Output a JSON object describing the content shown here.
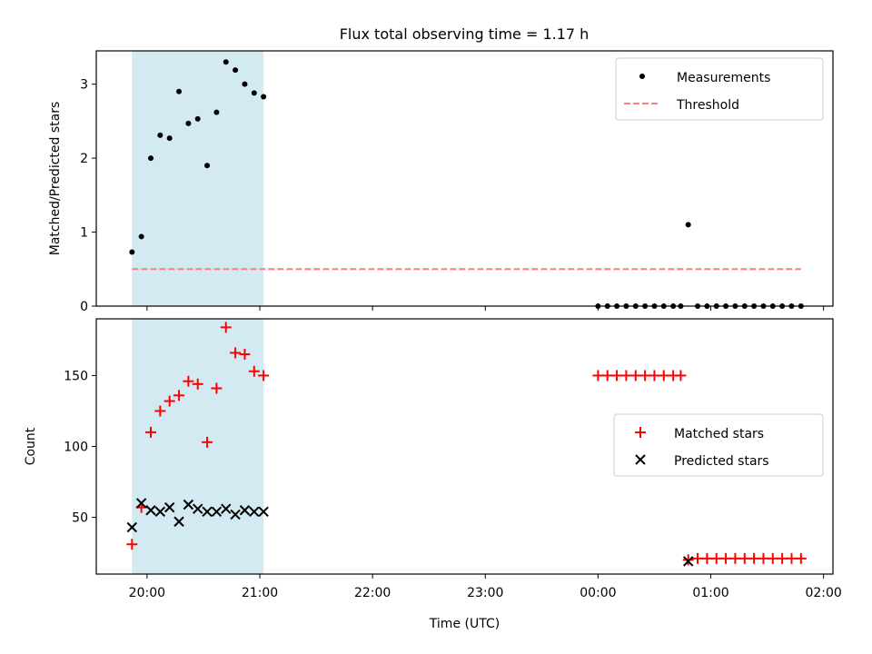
{
  "figure": {
    "title": "Flux total observing time = 1.17 h"
  },
  "colors": {
    "highlight_band": "#add8e6",
    "measurement": "#000000",
    "threshold": "#ff7f7f",
    "matched": "#ff0000",
    "predicted": "#000000"
  },
  "chart_data": [
    {
      "type": "scatter",
      "panel": "top",
      "title": "Flux total observing time = 1.17 h",
      "xlabel": "",
      "ylabel": "Matched/Predicted stars",
      "xlim": [
        "19:33",
        "02:05"
      ],
      "ylim": [
        0,
        3.45
      ],
      "yticks": [
        0,
        1,
        2,
        3
      ],
      "xtick_labels_shown": false,
      "grid": false,
      "legend": {
        "placement": "upper right",
        "entries": [
          "Measurements",
          "Threshold"
        ]
      },
      "highlight_span": {
        "x": [
          "19:52",
          "21:02"
        ]
      },
      "series": [
        {
          "name": "Measurements",
          "marker": "dot",
          "points": [
            [
              "19:52",
              0.73
            ],
            [
              "19:57",
              0.94
            ],
            [
              "20:02",
              2.0
            ],
            [
              "20:07",
              2.31
            ],
            [
              "20:12",
              2.27
            ],
            [
              "20:17",
              2.9
            ],
            [
              "20:22",
              2.47
            ],
            [
              "20:27",
              2.53
            ],
            [
              "20:32",
              1.9
            ],
            [
              "20:37",
              2.62
            ],
            [
              "20:42",
              3.3
            ],
            [
              "20:47",
              3.19
            ],
            [
              "20:52",
              3.0
            ],
            [
              "20:57",
              2.88
            ],
            [
              "21:02",
              2.83
            ],
            [
              "00:00",
              0.0
            ],
            [
              "00:05",
              0.0
            ],
            [
              "00:10",
              0.0
            ],
            [
              "00:15",
              0.0
            ],
            [
              "00:20",
              0.0
            ],
            [
              "00:25",
              0.0
            ],
            [
              "00:30",
              0.0
            ],
            [
              "00:35",
              0.0
            ],
            [
              "00:40",
              0.0
            ],
            [
              "00:44",
              0.0
            ],
            [
              "00:48",
              1.1
            ],
            [
              "00:53",
              0.0
            ],
            [
              "00:58",
              0.0
            ],
            [
              "01:03",
              0.0
            ],
            [
              "01:08",
              0.0
            ],
            [
              "01:13",
              0.0
            ],
            [
              "01:18",
              0.0
            ],
            [
              "01:23",
              0.0
            ],
            [
              "01:28",
              0.0
            ],
            [
              "01:33",
              0.0
            ],
            [
              "01:38",
              0.0
            ],
            [
              "01:43",
              0.0
            ],
            [
              "01:48",
              0.0
            ]
          ]
        },
        {
          "name": "Threshold",
          "marker": "dashed-line",
          "points": [
            [
              "19:52",
              0.5
            ],
            [
              "01:48",
              0.5
            ]
          ]
        }
      ]
    },
    {
      "type": "scatter",
      "panel": "bottom",
      "title": "",
      "xlabel": "Time (UTC)",
      "ylabel": "Count",
      "xlim": [
        "19:33",
        "02:05"
      ],
      "ylim": [
        10,
        190
      ],
      "yticks": [
        50,
        100,
        150
      ],
      "xticks": [
        "20:00",
        "21:00",
        "22:00",
        "23:00",
        "00:00",
        "01:00",
        "02:00"
      ],
      "grid": false,
      "legend": {
        "placement": "center right",
        "entries": [
          "Matched stars",
          "Predicted stars"
        ]
      },
      "highlight_span": {
        "x": [
          "19:52",
          "21:02"
        ]
      },
      "series": [
        {
          "name": "Matched stars",
          "marker": "plus",
          "points": [
            [
              "19:52",
              31
            ],
            [
              "19:57",
              57
            ],
            [
              "20:02",
              110
            ],
            [
              "20:07",
              125
            ],
            [
              "20:12",
              132
            ],
            [
              "20:17",
              136
            ],
            [
              "20:22",
              146
            ],
            [
              "20:27",
              144
            ],
            [
              "20:32",
              103
            ],
            [
              "20:37",
              141
            ],
            [
              "20:42",
              184
            ],
            [
              "20:47",
              166
            ],
            [
              "20:52",
              165
            ],
            [
              "20:57",
              153
            ],
            [
              "21:02",
              150
            ],
            [
              "00:00",
              150
            ],
            [
              "00:05",
              150
            ],
            [
              "00:10",
              150
            ],
            [
              "00:15",
              150
            ],
            [
              "00:20",
              150
            ],
            [
              "00:25",
              150
            ],
            [
              "00:30",
              150
            ],
            [
              "00:35",
              150
            ],
            [
              "00:40",
              150
            ],
            [
              "00:44",
              150
            ],
            [
              "00:48",
              20
            ],
            [
              "00:53",
              21
            ],
            [
              "00:58",
              21
            ],
            [
              "01:03",
              21
            ],
            [
              "01:08",
              21
            ],
            [
              "01:13",
              21
            ],
            [
              "01:18",
              21
            ],
            [
              "01:23",
              21
            ],
            [
              "01:28",
              21
            ],
            [
              "01:33",
              21
            ],
            [
              "01:38",
              21
            ],
            [
              "01:43",
              21
            ],
            [
              "01:48",
              21
            ]
          ]
        },
        {
          "name": "Predicted stars",
          "marker": "x",
          "points": [
            [
              "19:52",
              43
            ],
            [
              "19:57",
              60
            ],
            [
              "20:02",
              55
            ],
            [
              "20:07",
              54
            ],
            [
              "20:12",
              57
            ],
            [
              "20:17",
              47
            ],
            [
              "20:22",
              59
            ],
            [
              "20:27",
              56
            ],
            [
              "20:32",
              54
            ],
            [
              "20:37",
              54
            ],
            [
              "20:42",
              56
            ],
            [
              "20:47",
              52
            ],
            [
              "20:52",
              55
            ],
            [
              "20:57",
              54
            ],
            [
              "21:02",
              54
            ],
            [
              "00:48",
              19
            ]
          ]
        }
      ]
    }
  ]
}
